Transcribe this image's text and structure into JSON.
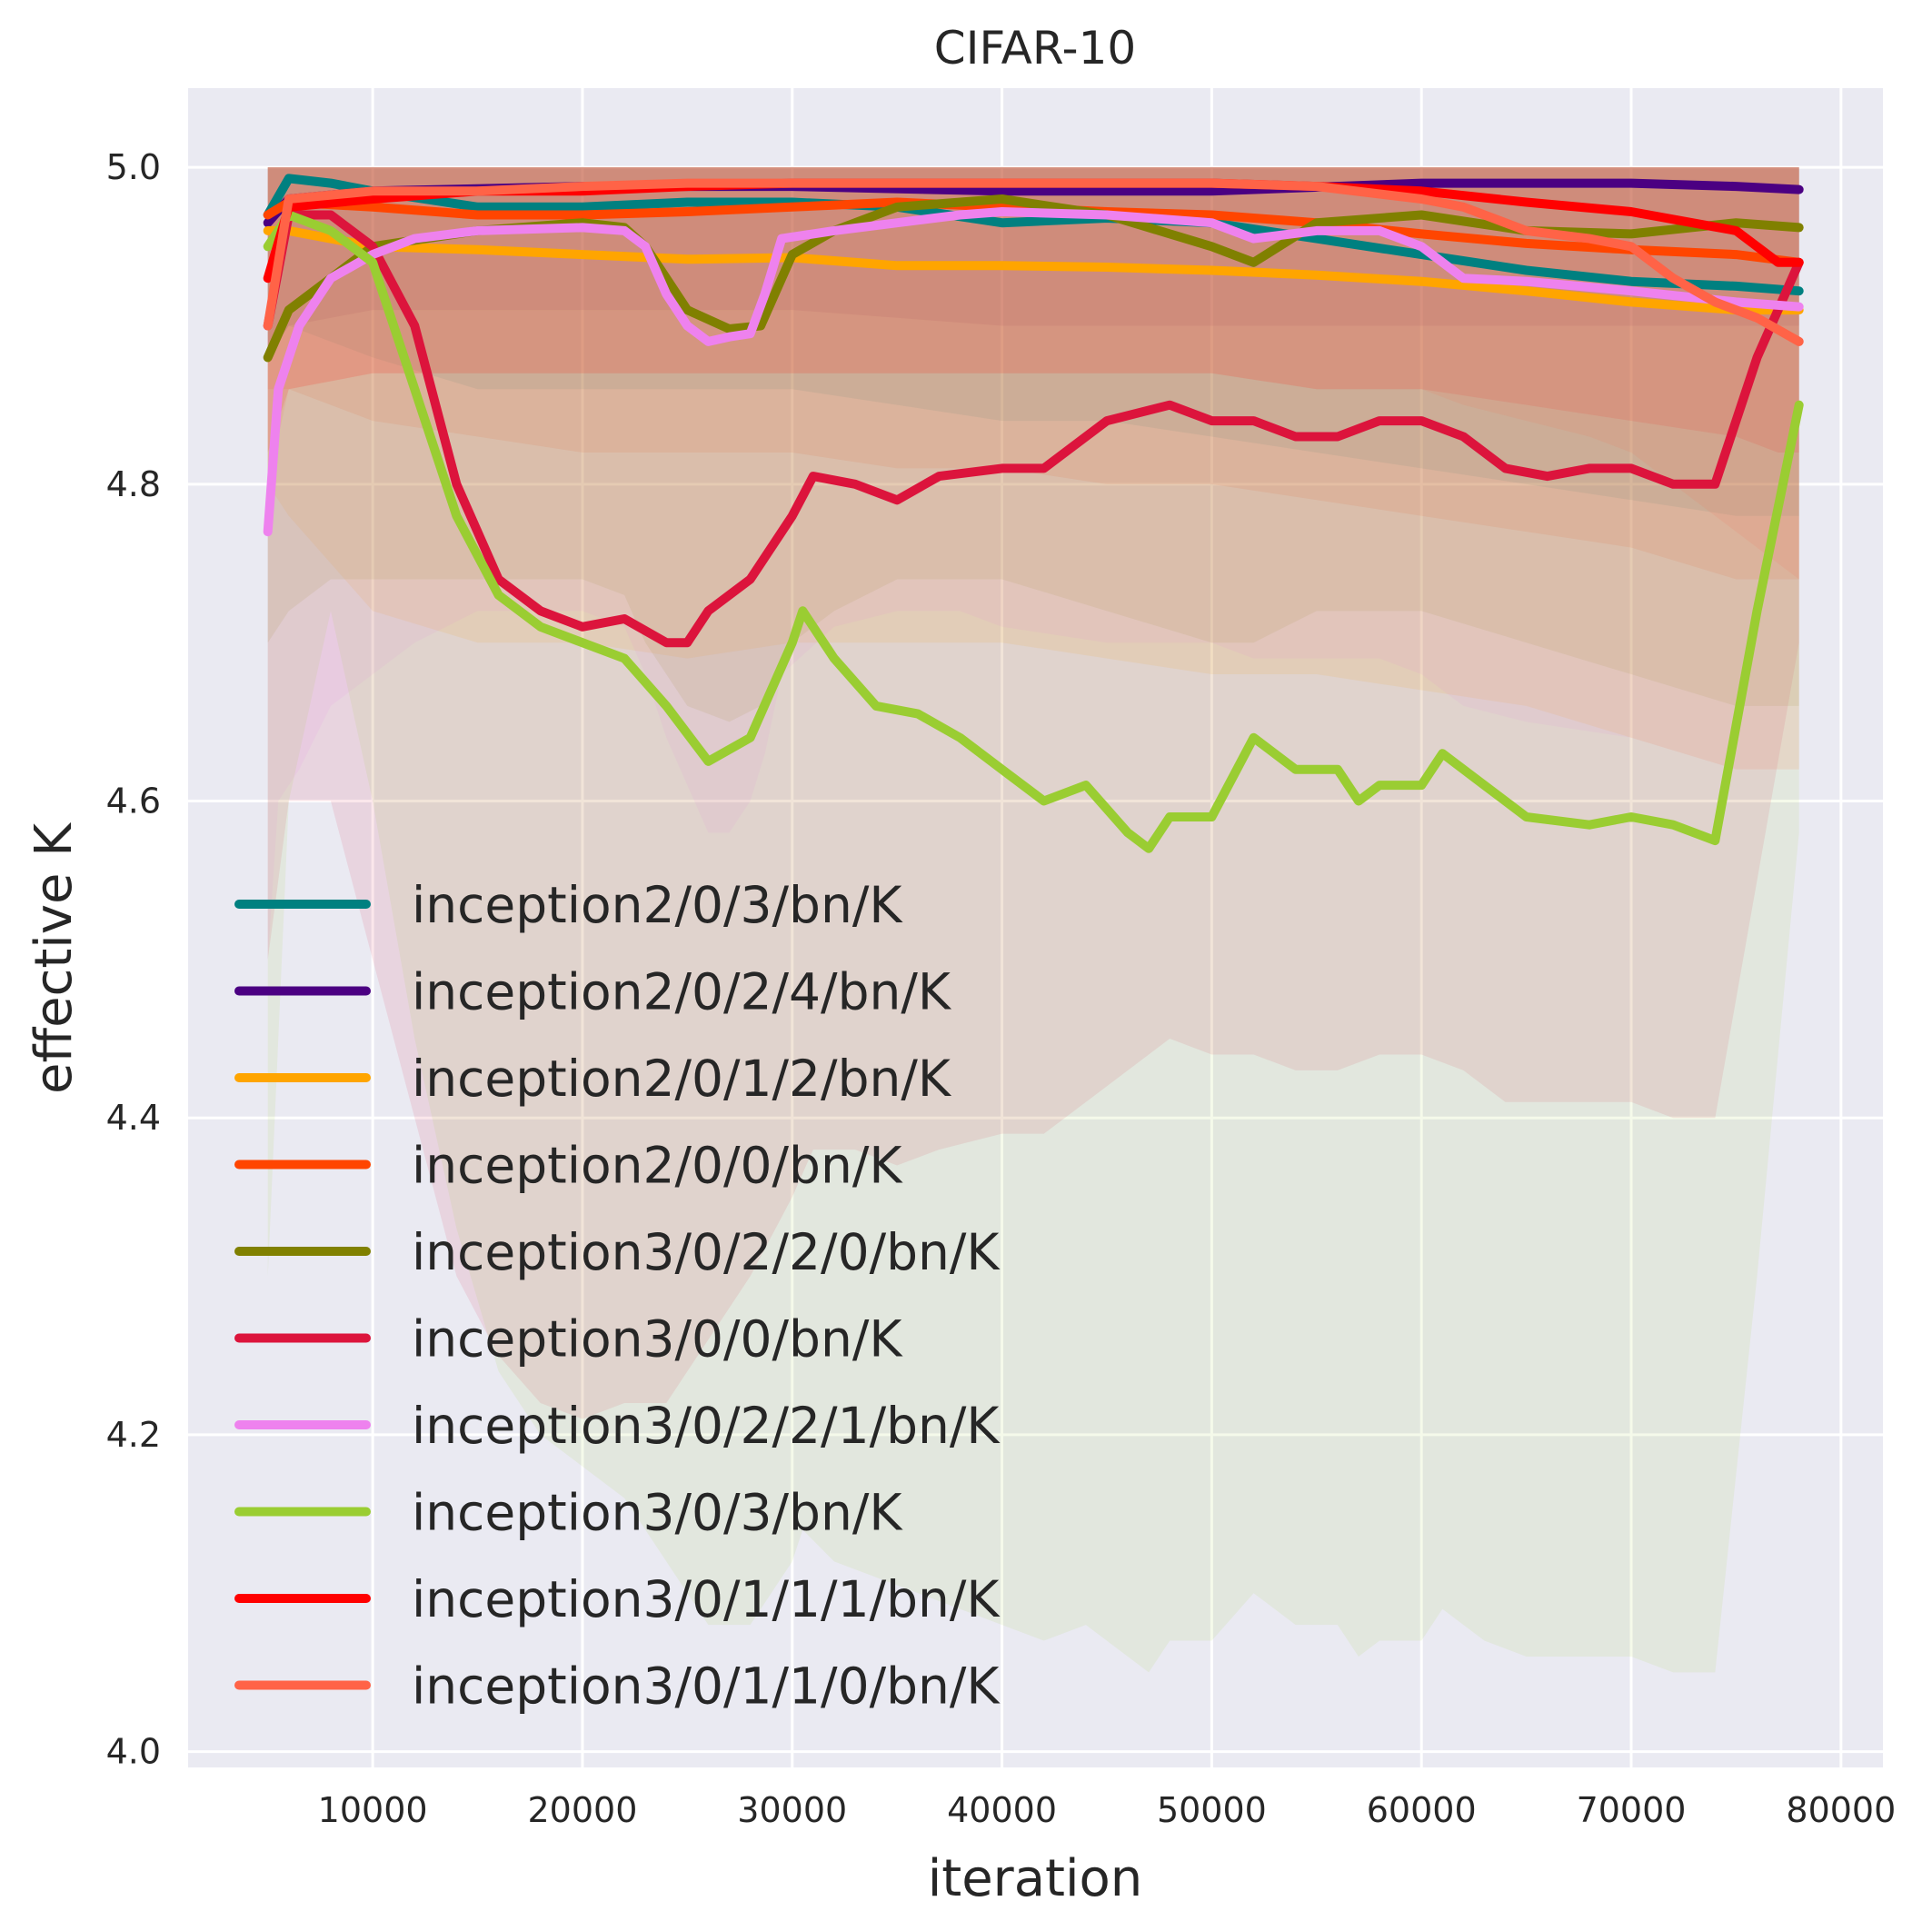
{
  "chart_data": {
    "type": "line",
    "title": "CIFAR-10",
    "xlabel": "iteration",
    "ylabel": "effective K",
    "xlim": [
      1200,
      82000
    ],
    "ylim": [
      3.99,
      5.05
    ],
    "xticks": [
      10000,
      20000,
      30000,
      40000,
      50000,
      60000,
      70000,
      80000
    ],
    "xtick_labels": [
      "10000",
      "20000",
      "30000",
      "40000",
      "50000",
      "60000",
      "70000",
      "80000"
    ],
    "yticks": [
      4.0,
      4.2,
      4.4,
      4.6,
      4.8,
      5.0
    ],
    "ytick_labels": [
      "4.0",
      "4.2",
      "4.4",
      "4.6",
      "4.8",
      "5.0"
    ],
    "grid": true,
    "legend_position": "lower-left",
    "series": [
      {
        "name": "inception2/0/3/bn/K",
        "color": "#008080",
        "x": [
          5000,
          6000,
          8000,
          10000,
          15000,
          20000,
          25000,
          30000,
          35000,
          40000,
          45000,
          50000,
          55000,
          60000,
          65000,
          70000,
          75000,
          78000
        ],
        "y": [
          4.97,
          4.993,
          4.99,
          4.985,
          4.975,
          4.975,
          4.978,
          4.978,
          4.975,
          4.965,
          4.968,
          4.965,
          4.955,
          4.945,
          4.935,
          4.928,
          4.925,
          4.922
        ],
        "band_low": [
          4.88,
          4.9,
          4.89,
          4.88,
          4.86,
          4.86,
          4.86,
          4.86,
          4.85,
          4.84,
          4.84,
          4.83,
          4.82,
          4.81,
          4.8,
          4.79,
          4.78,
          4.78
        ]
      },
      {
        "name": "inception2/0/2/4/bn/K",
        "color": "#4b0082",
        "x": [
          5000,
          6000,
          10000,
          20000,
          30000,
          40000,
          50000,
          60000,
          65000,
          70000,
          75000,
          78000
        ],
        "y": [
          4.965,
          4.98,
          4.985,
          4.988,
          4.988,
          4.985,
          4.985,
          4.99,
          4.99,
          4.99,
          4.988,
          4.986
        ],
        "band_low": [
          4.88,
          4.9,
          4.91,
          4.91,
          4.91,
          4.9,
          4.9,
          4.9,
          4.9,
          4.9,
          4.9,
          4.9
        ]
      },
      {
        "name": "inception2/0/1/2/bn/K",
        "color": "#ffa500",
        "x": [
          5000,
          6000,
          10000,
          15000,
          20000,
          25000,
          30000,
          35000,
          40000,
          45000,
          50000,
          55000,
          60000,
          65000,
          70000,
          75000,
          78000
        ],
        "y": [
          4.96,
          4.96,
          4.95,
          4.948,
          4.945,
          4.942,
          4.943,
          4.938,
          4.938,
          4.937,
          4.935,
          4.932,
          4.928,
          4.922,
          4.915,
          4.91,
          4.91
        ],
        "band_low": [
          4.8,
          4.78,
          4.72,
          4.7,
          4.7,
          4.69,
          4.7,
          4.7,
          4.7,
          4.69,
          4.68,
          4.68,
          4.67,
          4.66,
          4.64,
          4.62,
          4.62
        ]
      },
      {
        "name": "inception2/0/0/bn/K",
        "color": "#ff4500",
        "x": [
          5000,
          6000,
          10000,
          15000,
          20000,
          25000,
          30000,
          35000,
          40000,
          45000,
          50000,
          55000,
          60000,
          65000,
          70000,
          75000,
          78000
        ],
        "y": [
          4.97,
          4.978,
          4.975,
          4.97,
          4.97,
          4.972,
          4.975,
          4.978,
          4.975,
          4.972,
          4.97,
          4.965,
          4.958,
          4.952,
          4.948,
          4.945,
          4.94
        ],
        "band_low": [
          4.86,
          4.86,
          4.84,
          4.83,
          4.82,
          4.82,
          4.82,
          4.81,
          4.81,
          4.8,
          4.8,
          4.79,
          4.78,
          4.77,
          4.76,
          4.74,
          4.74
        ]
      },
      {
        "name": "inception3/0/2/2/0/bn/K",
        "color": "#808000",
        "x": [
          5000,
          6000,
          8000,
          10000,
          15000,
          20000,
          22000,
          23000,
          25000,
          27000,
          28500,
          30000,
          32000,
          35000,
          40000,
          45000,
          50000,
          52000,
          55000,
          60000,
          65000,
          70000,
          75000,
          78000
        ],
        "y": [
          4.88,
          4.91,
          4.93,
          4.95,
          4.96,
          4.965,
          4.962,
          4.95,
          4.91,
          4.898,
          4.9,
          4.945,
          4.96,
          4.975,
          4.98,
          4.97,
          4.95,
          4.94,
          4.965,
          4.97,
          4.96,
          4.958,
          4.965,
          4.962
        ],
        "band_low": [
          4.7,
          4.72,
          4.74,
          4.74,
          4.74,
          4.74,
          4.73,
          4.7,
          4.66,
          4.65,
          4.66,
          4.7,
          4.72,
          4.74,
          4.74,
          4.72,
          4.7,
          4.7,
          4.72,
          4.72,
          4.7,
          4.68,
          4.66,
          4.66
        ]
      },
      {
        "name": "inception3/0/0/bn/K",
        "color": "#dc143c",
        "x": [
          5000,
          6000,
          8000,
          10000,
          12000,
          14000,
          16000,
          18000,
          20000,
          22000,
          24000,
          25000,
          26000,
          27000,
          28000,
          30000,
          31000,
          33000,
          35000,
          37000,
          40000,
          42000,
          45000,
          48000,
          50000,
          52000,
          54000,
          56000,
          58000,
          60000,
          62000,
          64000,
          66000,
          68000,
          70000,
          72000,
          74000,
          76000,
          78000
        ],
        "y": [
          4.9,
          4.97,
          4.97,
          4.95,
          4.9,
          4.8,
          4.74,
          4.72,
          4.71,
          4.715,
          4.7,
          4.7,
          4.72,
          4.73,
          4.74,
          4.78,
          4.805,
          4.8,
          4.79,
          4.805,
          4.81,
          4.81,
          4.84,
          4.85,
          4.84,
          4.84,
          4.83,
          4.83,
          4.84,
          4.84,
          4.83,
          4.81,
          4.805,
          4.81,
          4.81,
          4.8,
          4.8,
          4.88,
          4.94
        ],
        "band_low": [
          4.5,
          4.6,
          4.6,
          4.5,
          4.4,
          4.3,
          4.25,
          4.22,
          4.21,
          4.22,
          4.22,
          4.24,
          4.26,
          4.28,
          4.3,
          4.35,
          4.38,
          4.38,
          4.37,
          4.38,
          4.39,
          4.39,
          4.42,
          4.45,
          4.44,
          4.44,
          4.43,
          4.43,
          4.44,
          4.44,
          4.43,
          4.41,
          4.41,
          4.41,
          4.41,
          4.4,
          4.4,
          4.55,
          4.7
        ]
      },
      {
        "name": "inception3/0/2/2/1/bn/K",
        "color": "#ee82ee",
        "x": [
          5000,
          5500,
          6500,
          8000,
          10000,
          12000,
          15000,
          20000,
          22000,
          23000,
          24000,
          25000,
          26000,
          27000,
          28000,
          28700,
          29500,
          32000,
          35000,
          38000,
          40000,
          45000,
          50000,
          52000,
          55000,
          58000,
          60000,
          62000,
          65000,
          70000,
          75000,
          78000
        ],
        "y": [
          4.77,
          4.86,
          4.9,
          4.93,
          4.945,
          4.955,
          4.96,
          4.962,
          4.96,
          4.95,
          4.92,
          4.9,
          4.89,
          4.893,
          4.895,
          4.92,
          4.955,
          4.96,
          4.965,
          4.97,
          4.972,
          4.97,
          4.965,
          4.955,
          4.96,
          4.96,
          4.95,
          4.93,
          4.928,
          4.922,
          4.915,
          4.912
        ],
        "band_low": [
          4.5,
          4.6,
          4.62,
          4.66,
          4.68,
          4.7,
          4.72,
          4.72,
          4.71,
          4.68,
          4.64,
          4.61,
          4.58,
          4.58,
          4.6,
          4.63,
          4.68,
          4.71,
          4.72,
          4.72,
          4.71,
          4.7,
          4.7,
          4.69,
          4.69,
          4.69,
          4.68,
          4.66,
          4.65,
          4.64,
          4.62,
          4.62
        ]
      },
      {
        "name": "inception3/0/3/bn/K",
        "color": "#9acd32",
        "x": [
          5000,
          6000,
          8000,
          10000,
          12000,
          14000,
          16000,
          18000,
          20000,
          22000,
          24000,
          26000,
          28000,
          30000,
          30500,
          32000,
          34000,
          36000,
          38000,
          40000,
          42000,
          44000,
          46000,
          47000,
          48000,
          50000,
          52000,
          54000,
          56000,
          57000,
          58000,
          60000,
          61000,
          63000,
          65000,
          68000,
          70000,
          72000,
          74000,
          76000,
          78000
        ],
        "y": [
          4.95,
          4.97,
          4.96,
          4.94,
          4.86,
          4.78,
          4.73,
          4.71,
          4.7,
          4.69,
          4.66,
          4.625,
          4.64,
          4.7,
          4.72,
          4.69,
          4.66,
          4.655,
          4.64,
          4.62,
          4.6,
          4.61,
          4.58,
          4.57,
          4.59,
          4.59,
          4.64,
          4.62,
          4.62,
          4.6,
          4.61,
          4.61,
          4.63,
          4.61,
          4.59,
          4.585,
          4.59,
          4.585,
          4.575,
          4.72,
          4.85
        ],
        "band_low": [
          4.3,
          4.6,
          4.72,
          4.6,
          4.45,
          4.33,
          4.24,
          4.2,
          4.18,
          4.16,
          4.12,
          4.08,
          4.08,
          4.12,
          4.14,
          4.12,
          4.11,
          4.1,
          4.09,
          4.08,
          4.07,
          4.08,
          4.06,
          4.05,
          4.07,
          4.07,
          4.1,
          4.08,
          4.08,
          4.06,
          4.07,
          4.07,
          4.09,
          4.07,
          4.06,
          4.06,
          4.06,
          4.05,
          4.05,
          4.3,
          4.58
        ]
      },
      {
        "name": "inception3/0/1/1/1/bn/K",
        "color": "#ff0000",
        "x": [
          5000,
          6000,
          10000,
          15000,
          20000,
          25000,
          30000,
          35000,
          40000,
          45000,
          50000,
          55000,
          60000,
          65000,
          70000,
          75000,
          77000,
          78000
        ],
        "y": [
          4.93,
          4.975,
          4.98,
          4.985,
          4.985,
          4.988,
          4.99,
          4.99,
          4.99,
          4.99,
          4.99,
          4.988,
          4.985,
          4.978,
          4.972,
          4.96,
          4.94,
          4.94
        ],
        "band_low": [
          4.82,
          4.86,
          4.87,
          4.87,
          4.87,
          4.87,
          4.87,
          4.87,
          4.87,
          4.87,
          4.87,
          4.86,
          4.86,
          4.85,
          4.84,
          4.83,
          4.82,
          4.82
        ]
      },
      {
        "name": "inception3/0/1/1/0/bn/K",
        "color": "#ff6347",
        "x": [
          5000,
          6000,
          10000,
          15000,
          20000,
          25000,
          30000,
          35000,
          40000,
          45000,
          50000,
          55000,
          60000,
          62000,
          65000,
          68000,
          70000,
          72000,
          74000,
          76000,
          78000
        ],
        "y": [
          4.9,
          4.98,
          4.985,
          4.985,
          4.988,
          4.99,
          4.99,
          4.99,
          4.99,
          4.99,
          4.99,
          4.988,
          4.98,
          4.975,
          4.96,
          4.955,
          4.95,
          4.93,
          4.915,
          4.905,
          4.89
        ],
        "band_low": [
          4.8,
          4.86,
          4.87,
          4.87,
          4.87,
          4.87,
          4.87,
          4.87,
          4.87,
          4.87,
          4.87,
          4.86,
          4.86,
          4.85,
          4.84,
          4.83,
          4.82,
          4.8,
          4.78,
          4.76,
          4.74
        ]
      }
    ]
  }
}
